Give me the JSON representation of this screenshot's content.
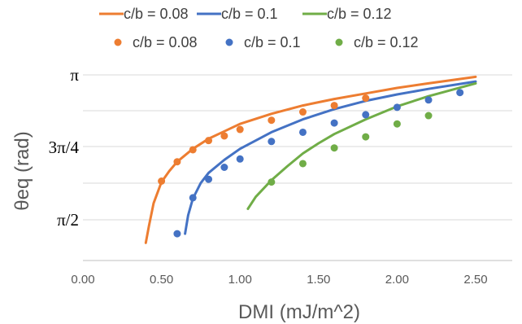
{
  "chart_data": {
    "type": "scatter",
    "xlabel": "DMI (mJ/m^2)",
    "ylabel": "θeq (rad)",
    "xlim": [
      0,
      2.5
    ],
    "ylim": [
      1.3,
      3.1416
    ],
    "x_ticks": [
      "0.00",
      "0.50",
      "1.00",
      "1.50",
      "2.00",
      "2.50"
    ],
    "y_ticks": [
      {
        "value": 3.1416,
        "label": "π"
      },
      {
        "value": 2.3562,
        "label": "3π/4"
      },
      {
        "value": 1.5708,
        "label": "π/2"
      }
    ],
    "grid": "horizontal",
    "legend_position": "top",
    "lines": [
      {
        "name": "c/b = 0.08",
        "color": "#ED7D31",
        "x": [
          0.4,
          0.42,
          0.45,
          0.5,
          0.55,
          0.6,
          0.7,
          0.8,
          0.9,
          1.0,
          1.2,
          1.4,
          1.6,
          1.8,
          2.0,
          2.2,
          2.5
        ],
        "y": [
          1.32,
          1.5,
          1.75,
          1.98,
          2.1,
          2.2,
          2.34,
          2.45,
          2.53,
          2.61,
          2.72,
          2.81,
          2.88,
          2.94,
          3.0,
          3.05,
          3.12
        ]
      },
      {
        "name": "c/b = 0.1",
        "color": "#4472C4",
        "x": [
          0.65,
          0.67,
          0.7,
          0.75,
          0.8,
          0.9,
          1.0,
          1.2,
          1.4,
          1.6,
          1.8,
          2.0,
          2.2,
          2.5
        ],
        "y": [
          1.42,
          1.62,
          1.8,
          1.97,
          2.08,
          2.22,
          2.34,
          2.52,
          2.66,
          2.77,
          2.86,
          2.93,
          2.99,
          3.07
        ]
      },
      {
        "name": "c/b = 0.12",
        "color": "#70AD47",
        "x": [
          1.05,
          1.1,
          1.2,
          1.3,
          1.4,
          1.5,
          1.6,
          1.8,
          2.0,
          2.2,
          2.5
        ],
        "y": [
          1.69,
          1.82,
          2.0,
          2.15,
          2.29,
          2.4,
          2.5,
          2.66,
          2.8,
          2.91,
          3.05
        ]
      }
    ],
    "points": [
      {
        "name": "c/b = 0.08",
        "color": "#ED7D31",
        "x": [
          0.5,
          0.6,
          0.7,
          0.8,
          0.9,
          1.0,
          1.2,
          1.4,
          1.6,
          1.8
        ],
        "y": [
          1.99,
          2.2,
          2.33,
          2.43,
          2.48,
          2.55,
          2.65,
          2.74,
          2.81,
          2.89
        ]
      },
      {
        "name": "c/b = 0.1",
        "color": "#4472C4",
        "x": [
          0.6,
          0.7,
          0.8,
          0.9,
          1.0,
          1.2,
          1.4,
          1.6,
          1.8,
          2.0,
          2.2,
          2.4
        ],
        "y": [
          1.42,
          1.81,
          2.01,
          2.14,
          2.23,
          2.42,
          2.52,
          2.62,
          2.71,
          2.79,
          2.87,
          2.95
        ]
      },
      {
        "name": "c/b = 0.12",
        "color": "#70AD47",
        "x": [
          1.2,
          1.4,
          1.6,
          1.8,
          2.0,
          2.2
        ],
        "y": [
          1.98,
          2.18,
          2.35,
          2.47,
          2.61,
          2.7
        ]
      }
    ]
  }
}
